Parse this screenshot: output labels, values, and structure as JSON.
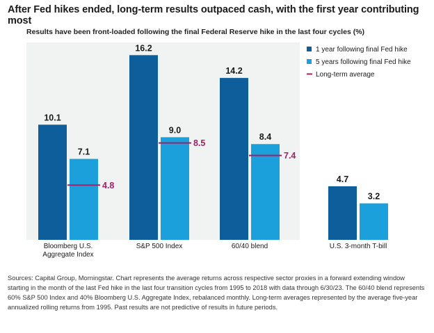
{
  "headline": "After Fed hikes ended, long-term results outpaced cash, with the first year contributing most",
  "subtitle": "Results have been front-loaded following the final Federal Reserve hike in the last four cycles (%)",
  "sources": "Sources: Capital Group, Morningstar. Chart represents the average returns across respective sector proxies in a forward extending window starting in the month of the last Fed hike in the last four transition cycles from 1995 to 2018 with data through 6/30/23. The 60/40 blend represents 60% S&P 500 Index and 40% Bloomberg U.S. Aggregate Index, rebalanced monthly. Long-term averages represented by the average five-year annualized rolling returns from 1995. Past results are not predictive of results in future periods.",
  "colors": {
    "one_year": "#0d5e9a",
    "five_year": "#1ca0dc",
    "long_term": "#a3206a",
    "panel_bg": "#f1f2f2"
  },
  "chart_data": {
    "type": "bar",
    "categories": [
      "Bloomberg U.S.\nAggregate Index",
      "S&P 500 Index",
      "60/40 blend",
      "U.S. 3-month T-bill"
    ],
    "series": [
      {
        "name": "1 year following final Fed hike",
        "values": [
          10.1,
          16.2,
          14.2,
          4.7
        ]
      },
      {
        "name": "5 years following final Fed hike",
        "values": [
          7.1,
          9.0,
          8.4,
          3.2
        ]
      }
    ],
    "long_term_average": {
      "name": "Long-term average",
      "values": [
        4.8,
        8.5,
        7.4,
        null
      ]
    },
    "ylim": [
      0,
      17
    ],
    "legend_position": "top-right",
    "grid": false
  }
}
